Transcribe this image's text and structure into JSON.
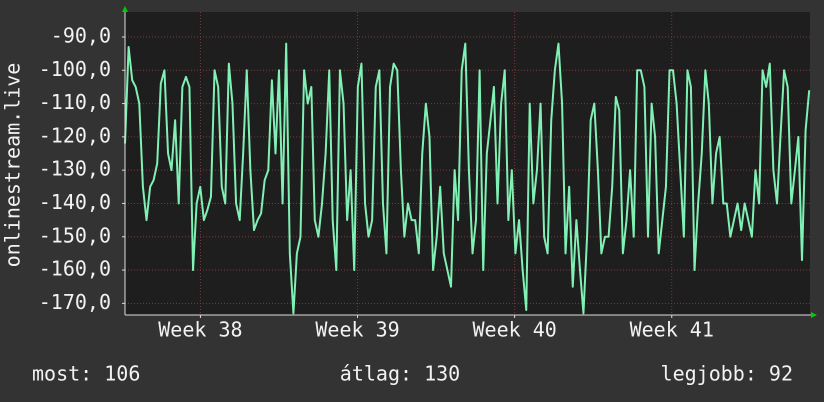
{
  "chart_data": {
    "type": "line",
    "y_label": "onlinestream.live",
    "annotations": [
      "most: 106",
      "átlag: 130",
      "legjobb: 92"
    ],
    "xlim": [
      37.52,
      41.88
    ],
    "xticks": [
      {
        "value": 38,
        "label": "Week 38"
      },
      {
        "value": 39,
        "label": "Week 39"
      },
      {
        "value": 40,
        "label": "Week 40"
      },
      {
        "value": 41,
        "label": "Week 41"
      }
    ],
    "ylim": [
      -173.5,
      -82.5
    ],
    "yticks": [
      {
        "value": -170,
        "label": "-170,0"
      },
      {
        "value": -160,
        "label": "-160,0"
      },
      {
        "value": -150,
        "label": "-150,0"
      },
      {
        "value": -140,
        "label": "-140,0"
      },
      {
        "value": -130,
        "label": "-130,0"
      },
      {
        "value": -120,
        "label": "-120,0"
      },
      {
        "value": -110,
        "label": "-110,0"
      },
      {
        "value": -100,
        "label": "-100,0"
      },
      {
        "value": -90,
        "label": "-90,0"
      }
    ],
    "grid": true,
    "x": [
      37.52,
      37.543,
      37.566,
      37.588,
      37.611,
      37.634,
      37.657,
      37.68,
      37.702,
      37.725,
      37.748,
      37.771,
      37.794,
      37.816,
      37.839,
      37.862,
      37.885,
      37.908,
      37.93,
      37.953,
      37.976,
      37.999,
      38.022,
      38.044,
      38.067,
      38.09,
      38.113,
      38.136,
      38.158,
      38.181,
      38.204,
      38.227,
      38.25,
      38.272,
      38.295,
      38.318,
      38.341,
      38.364,
      38.386,
      38.409,
      38.432,
      38.455,
      38.478,
      38.5,
      38.523,
      38.546,
      38.569,
      38.592,
      38.614,
      38.637,
      38.66,
      38.683,
      38.706,
      38.728,
      38.751,
      38.774,
      38.797,
      38.82,
      38.842,
      38.865,
      38.888,
      38.911,
      38.934,
      38.956,
      38.979,
      39.002,
      39.025,
      39.048,
      39.07,
      39.093,
      39.116,
      39.139,
      39.162,
      39.184,
      39.207,
      39.23,
      39.253,
      39.276,
      39.298,
      39.321,
      39.344,
      39.367,
      39.39,
      39.412,
      39.435,
      39.458,
      39.481,
      39.504,
      39.526,
      39.549,
      39.572,
      39.595,
      39.618,
      39.64,
      39.663,
      39.686,
      39.709,
      39.732,
      39.754,
      39.777,
      39.8,
      39.823,
      39.846,
      39.868,
      39.891,
      39.914,
      39.937,
      39.96,
      39.982,
      40.005,
      40.028,
      40.051,
      40.074,
      40.096,
      40.119,
      40.142,
      40.165,
      40.188,
      40.21,
      40.233,
      40.256,
      40.279,
      40.302,
      40.324,
      40.347,
      40.37,
      40.393,
      40.416,
      40.438,
      40.461,
      40.484,
      40.507,
      40.53,
      40.552,
      40.575,
      40.598,
      40.621,
      40.644,
      40.666,
      40.689,
      40.712,
      40.735,
      40.758,
      40.78,
      40.803,
      40.826,
      40.849,
      40.872,
      40.894,
      40.917,
      40.94,
      40.963,
      40.986,
      41.008,
      41.031,
      41.054,
      41.077,
      41.1,
      41.122,
      41.145,
      41.168,
      41.191,
      41.214,
      41.236,
      41.259,
      41.282,
      41.305,
      41.328,
      41.35,
      41.373,
      41.396,
      41.419,
      41.442,
      41.464,
      41.487,
      41.51,
      41.533,
      41.556,
      41.578,
      41.601,
      41.624,
      41.647,
      41.67,
      41.692,
      41.715,
      41.738,
      41.761,
      41.784,
      41.806,
      41.829,
      41.852,
      41.875
    ],
    "series": [
      {
        "color": "#80f0b4",
        "values": [
          -122,
          -93,
          -103,
          -105,
          -110,
          -135,
          -145,
          -135,
          -133,
          -128,
          -104,
          -100,
          -125,
          -130,
          -115,
          -140,
          -105,
          -102,
          -105,
          -160,
          -140,
          -135,
          -145,
          -142,
          -138,
          -100,
          -105,
          -135,
          -140,
          -98,
          -110,
          -140,
          -145,
          -125,
          -100,
          -130,
          -148,
          -145,
          -143,
          -133,
          -130,
          -103,
          -125,
          -100,
          -140,
          -92,
          -155,
          -173,
          -155,
          -150,
          -100,
          -110,
          -105,
          -145,
          -150,
          -140,
          -125,
          -100,
          -145,
          -160,
          -100,
          -110,
          -145,
          -130,
          -160,
          -105,
          -98,
          -140,
          -150,
          -145,
          -105,
          -100,
          -140,
          -155,
          -105,
          -98,
          -100,
          -130,
          -150,
          -140,
          -145,
          -145,
          -155,
          -125,
          -110,
          -120,
          -160,
          -150,
          -135,
          -155,
          -160,
          -165,
          -130,
          -145,
          -100,
          -92,
          -130,
          -155,
          -145,
          -100,
          -160,
          -125,
          -115,
          -105,
          -140,
          -110,
          -100,
          -145,
          -130,
          -155,
          -145,
          -160,
          -172,
          -110,
          -140,
          -130,
          -110,
          -150,
          -155,
          -115,
          -100,
          -92,
          -110,
          -155,
          -135,
          -165,
          -145,
          -160,
          -173,
          -150,
          -115,
          -110,
          -130,
          -155,
          -150,
          -150,
          -135,
          -108,
          -112,
          -155,
          -145,
          -130,
          -150,
          -100,
          -100,
          -105,
          -150,
          -110,
          -120,
          -155,
          -145,
          -135,
          -100,
          -100,
          -110,
          -130,
          -150,
          -100,
          -105,
          -160,
          -140,
          -125,
          -100,
          -110,
          -140,
          -125,
          -120,
          -140,
          -140,
          -150,
          -145,
          -140,
          -148,
          -140,
          -145,
          -150,
          -130,
          -140,
          -100,
          -105,
          -98,
          -130,
          -140,
          -120,
          -100,
          -105,
          -140,
          -130,
          -120,
          -157,
          -118,
          -106
        ]
      }
    ]
  }
}
